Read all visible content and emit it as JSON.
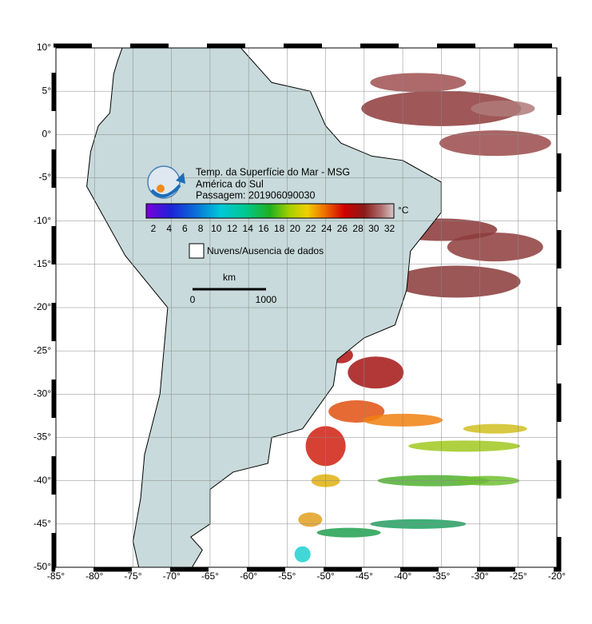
{
  "map": {
    "title_lines": [
      "Temp. da Superfície do Mar - MSG",
      "América do Sul",
      "Passagem: 201906090030"
    ],
    "colorbar": {
      "unit": "°C",
      "ticks": [
        "2",
        "4",
        "6",
        "8",
        "10",
        "12",
        "14",
        "16",
        "18",
        "20",
        "22",
        "24",
        "26",
        "28",
        "30",
        "32"
      ]
    },
    "legend": "Nuvens/Ausencia de dados",
    "scale_bar": {
      "unit": "km",
      "ticks": [
        "0",
        "1000"
      ]
    },
    "lat_labels": [
      "10°",
      "5°",
      "0°",
      "-5°",
      "-10°",
      "-15°",
      "-20°",
      "-25°",
      "-30°",
      "-35°",
      "-40°",
      "-45°",
      "-50°"
    ],
    "lon_labels": [
      "-85°",
      "-80°",
      "-75°",
      "-70°",
      "-65°",
      "-60°",
      "-55°",
      "-50°",
      "-45°",
      "-40°",
      "-35°",
      "-30°",
      "-25°",
      "-20°"
    ]
  }
}
